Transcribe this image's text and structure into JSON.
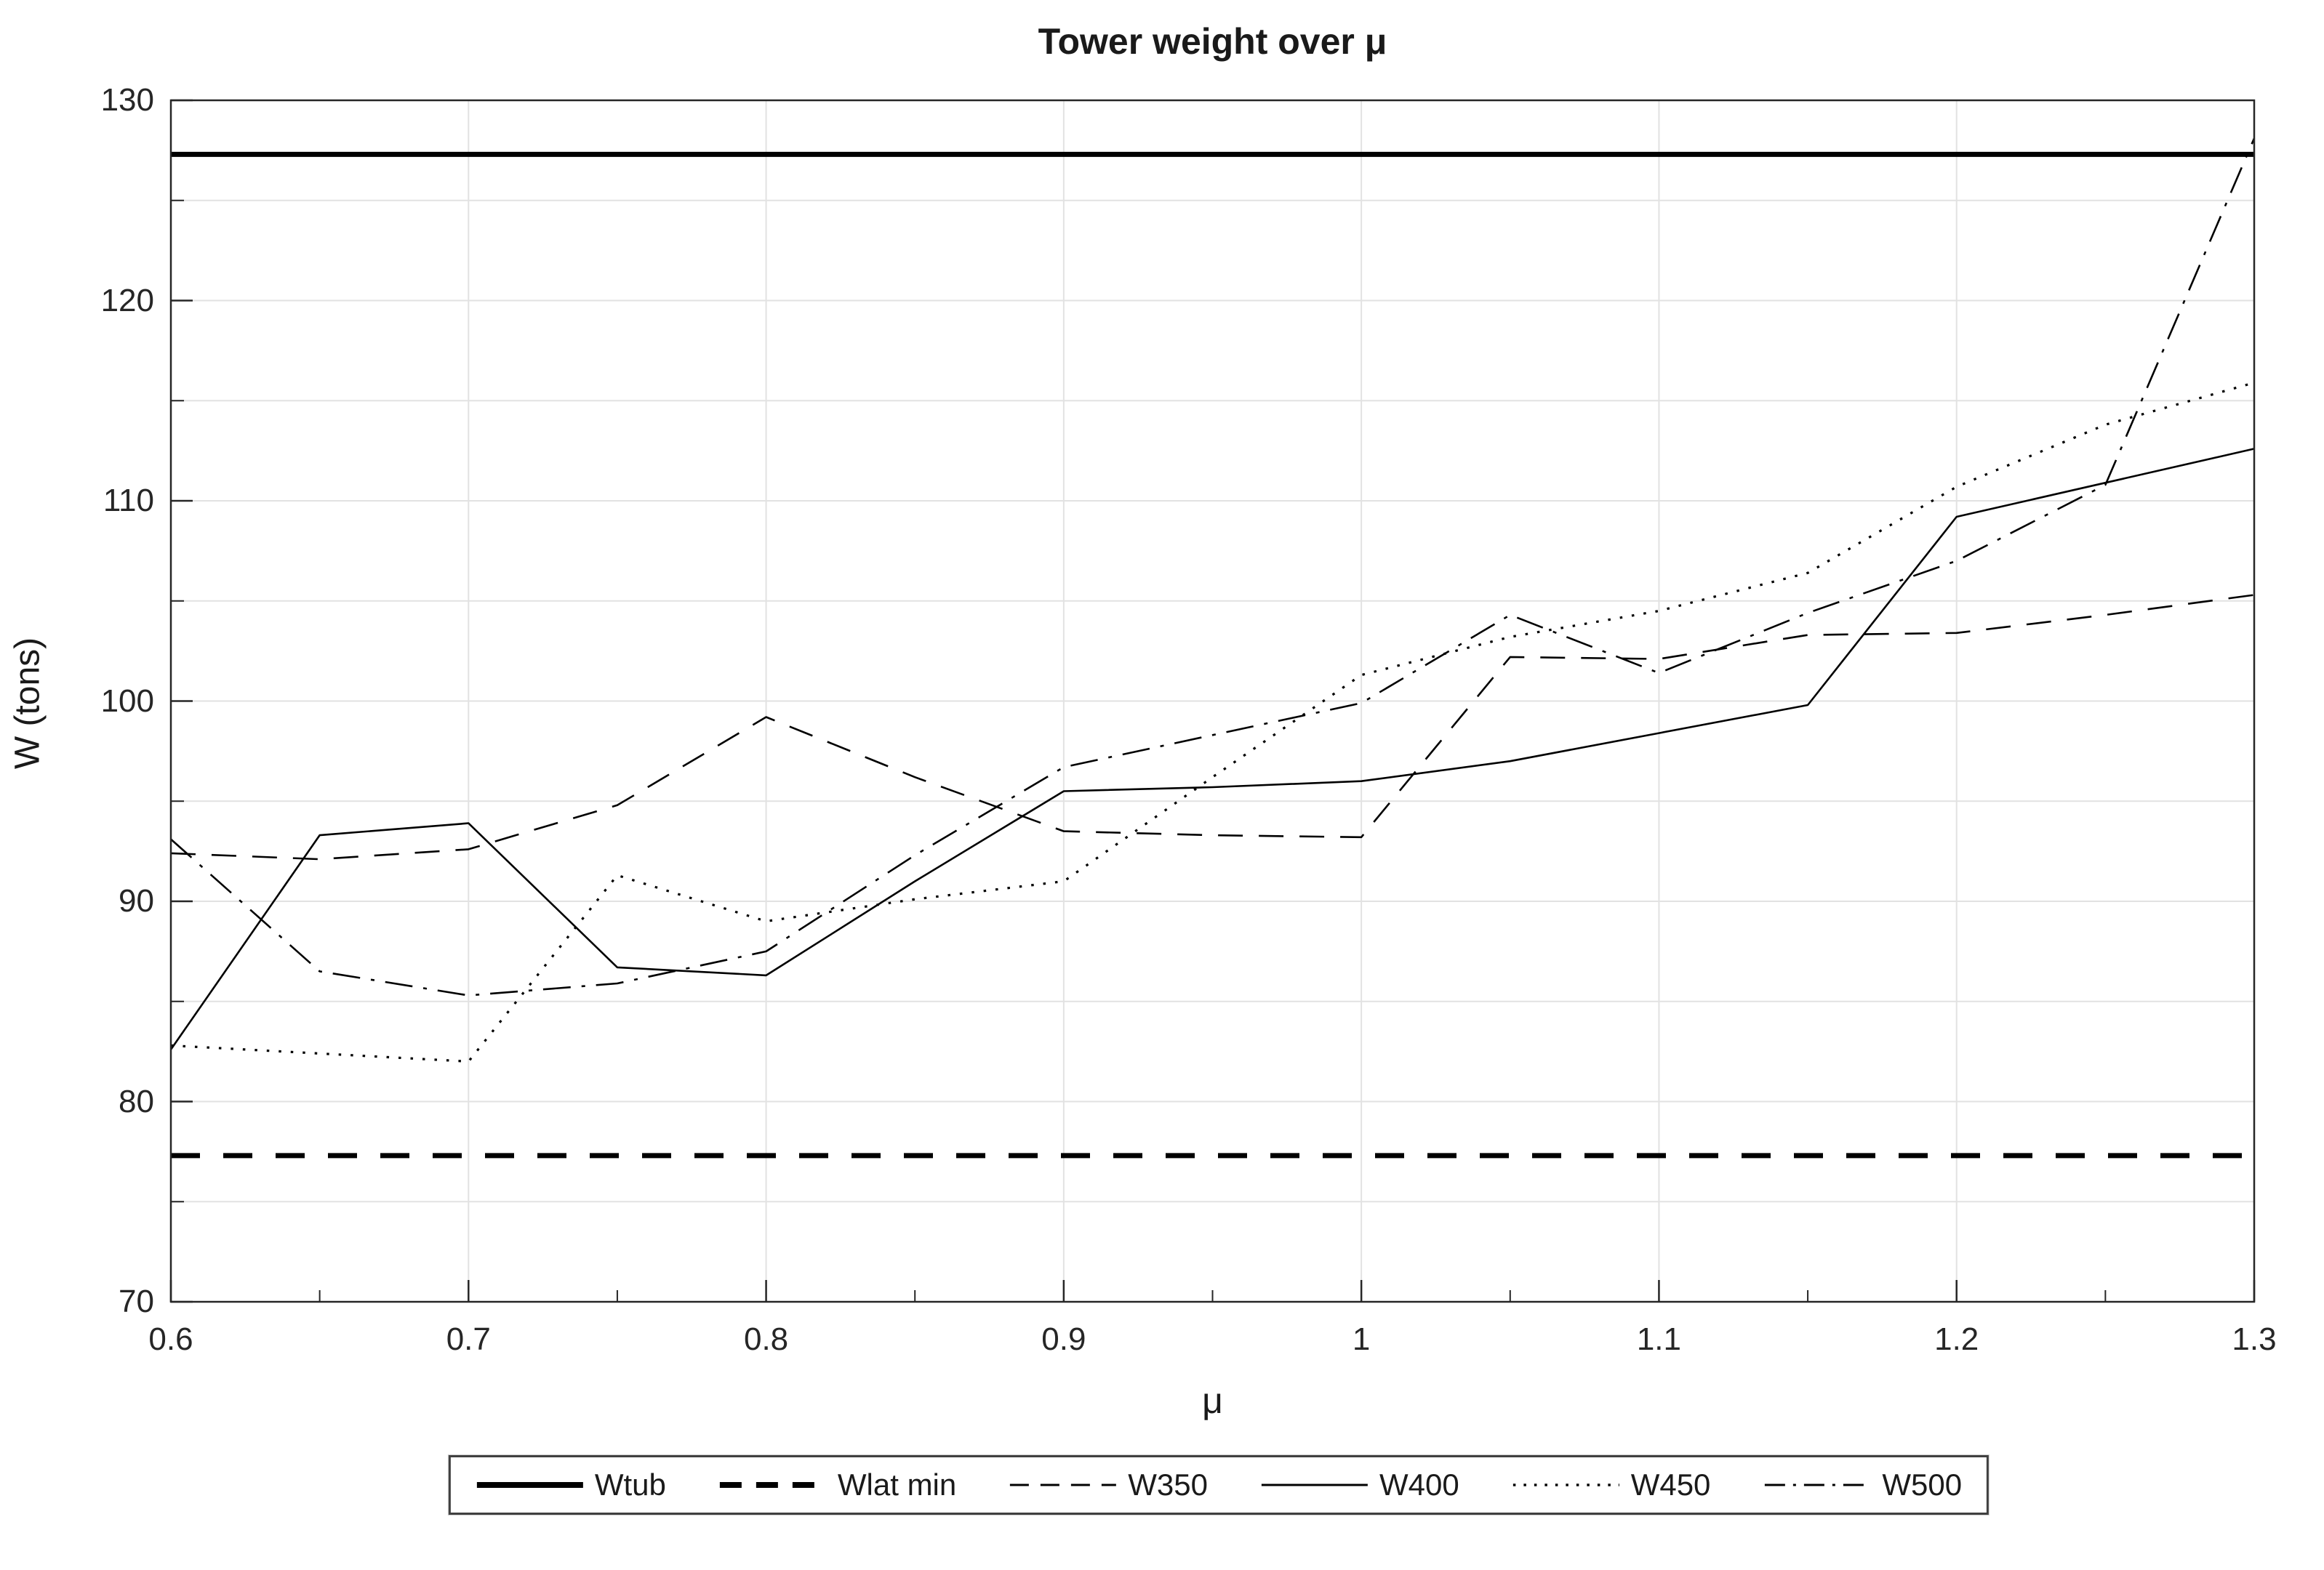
{
  "chart_data": {
    "type": "line",
    "title": "Tower weight over μ",
    "xlabel": "μ",
    "ylabel": "W (tons)",
    "xlim": [
      0.6,
      1.3
    ],
    "ylim": [
      70,
      130
    ],
    "x_ticks": [
      0.6,
      0.7,
      0.8,
      0.9,
      1.0,
      1.1,
      1.2,
      1.3
    ],
    "x_tick_labels": [
      "0.6",
      "0.7",
      "0.8",
      "0.9",
      "1",
      "1.1",
      "1.2",
      "1.3"
    ],
    "y_ticks": [
      70,
      80,
      90,
      100,
      110,
      120,
      130
    ],
    "y_tick_labels": [
      "70",
      "80",
      "90",
      "100",
      "110",
      "120",
      "130"
    ],
    "y_minor_grid_step": 5,
    "grid": true,
    "legend_position": "below-outside",
    "line_color": "#000000",
    "grid_color": "#e2e2e2",
    "axis_color": "#262626",
    "x": [
      0.6,
      0.65,
      0.7,
      0.75,
      0.8,
      0.85,
      0.9,
      0.95,
      1.0,
      1.05,
      1.1,
      1.15,
      1.2,
      1.25,
      1.3
    ],
    "series": [
      {
        "name": "Wtub",
        "line_style": "solid",
        "thick": true,
        "constant": 127.3
      },
      {
        "name": "Wlat min",
        "line_style": "dashed",
        "thick": true,
        "constant": 77.3
      },
      {
        "name": "W350",
        "line_style": "dashed",
        "thick": false,
        "values": [
          92.4,
          92.1,
          92.6,
          94.8,
          99.2,
          96.2,
          93.5,
          93.3,
          93.2,
          102.2,
          102.1,
          103.3,
          103.4,
          104.3,
          105.3
        ]
      },
      {
        "name": "W400",
        "line_style": "solid",
        "thick": false,
        "values": [
          82.6,
          93.3,
          93.9,
          86.7,
          86.3,
          91.0,
          95.5,
          95.7,
          96.0,
          97.0,
          98.4,
          99.8,
          109.2,
          110.9,
          112.6
        ]
      },
      {
        "name": "W450",
        "line_style": "dotted",
        "thick": false,
        "values": [
          82.8,
          82.4,
          82.0,
          91.3,
          89.0,
          90.1,
          91.0,
          96.2,
          101.3,
          103.2,
          104.5,
          106.4,
          110.7,
          113.8,
          115.9
        ]
      },
      {
        "name": "W500",
        "line_style": "dashdot",
        "thick": false,
        "values": [
          93.1,
          86.5,
          85.3,
          85.9,
          87.5,
          92.3,
          96.7,
          98.3,
          99.9,
          104.3,
          101.4,
          104.4,
          107.0,
          110.8,
          128.1
        ]
      }
    ]
  }
}
